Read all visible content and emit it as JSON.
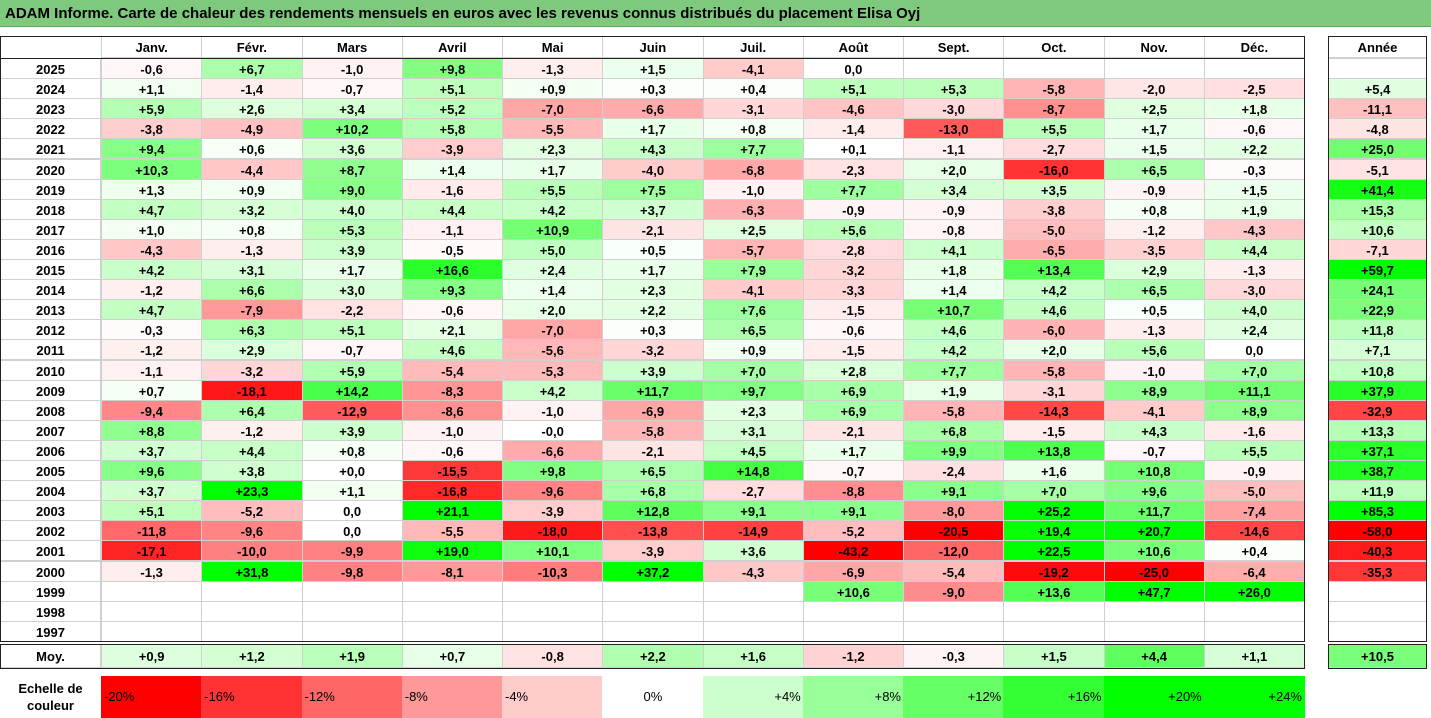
{
  "title": "ADAM Informe. Carte de chaleur des rendements mensuels en euros avec les revenus connus distribués du placement Elisa Oyj",
  "chart_data": {
    "type": "heatmap",
    "months": [
      "Janv.",
      "Févr.",
      "Mars",
      "Avril",
      "Mai",
      "Juin",
      "Juil.",
      "Août",
      "Sept.",
      "Oct.",
      "Nov.",
      "Déc."
    ],
    "annual_header": "Année",
    "average_label": "Moy.",
    "years": [
      "2025",
      "2024",
      "2023",
      "2022",
      "2021",
      "2020",
      "2019",
      "2018",
      "2017",
      "2016",
      "2015",
      "2014",
      "2013",
      "2012",
      "2011",
      "2010",
      "2009",
      "2008",
      "2007",
      "2006",
      "2005",
      "2004",
      "2003",
      "2002",
      "2001",
      "2000",
      "1999",
      "1998",
      "1997"
    ],
    "values": [
      [
        "-0,6",
        "+6,7",
        "-1,0",
        "+9,8",
        "-1,3",
        "+1,5",
        "-4,1",
        "0,0",
        "",
        "",
        "",
        ""
      ],
      [
        "+1,1",
        "-1,4",
        "-0,7",
        "+5,1",
        "+0,9",
        "+0,3",
        "+0,4",
        "+5,1",
        "+5,3",
        "-5,8",
        "-2,0",
        "-2,5"
      ],
      [
        "+5,9",
        "+2,6",
        "+3,4",
        "+5,2",
        "-7,0",
        "-6,6",
        "-3,1",
        "-4,6",
        "-3,0",
        "-8,7",
        "+2,5",
        "+1,8"
      ],
      [
        "-3,8",
        "-4,9",
        "+10,2",
        "+5,8",
        "-5,5",
        "+1,7",
        "+0,8",
        "-1,4",
        "-13,0",
        "+5,5",
        "+1,7",
        "-0,6"
      ],
      [
        "+9,4",
        "+0,6",
        "+3,6",
        "-3,9",
        "+2,3",
        "+4,3",
        "+7,7",
        "+0,1",
        "-1,1",
        "-2,7",
        "+1,5",
        "+2,2"
      ],
      [
        "+10,3",
        "-4,4",
        "+8,7",
        "+1,4",
        "+1,7",
        "-4,0",
        "-6,8",
        "-2,3",
        "+2,0",
        "-16,0",
        "+6,5",
        "-0,3"
      ],
      [
        "+1,3",
        "+0,9",
        "+9,0",
        "-1,6",
        "+5,5",
        "+7,5",
        "-1,0",
        "+7,7",
        "+3,4",
        "+3,5",
        "-0,9",
        "+1,5"
      ],
      [
        "+4,7",
        "+3,2",
        "+4,0",
        "+4,4",
        "+4,2",
        "+3,7",
        "-6,3",
        "-0,9",
        "-0,9",
        "-3,8",
        "+0,8",
        "+1,9"
      ],
      [
        "+1,0",
        "+0,8",
        "+5,3",
        "-1,1",
        "+10,9",
        "-2,1",
        "+2,5",
        "+5,6",
        "-0,8",
        "-5,0",
        "-1,2",
        "-4,3"
      ],
      [
        "-4,3",
        "-1,3",
        "+3,9",
        "-0,5",
        "+5,0",
        "+0,5",
        "-5,7",
        "-2,8",
        "+4,1",
        "-6,5",
        "-3,5",
        "+4,4"
      ],
      [
        "+4,2",
        "+3,1",
        "+1,7",
        "+16,6",
        "+2,4",
        "+1,7",
        "+7,9",
        "-3,2",
        "+1,8",
        "+13,4",
        "+2,9",
        "-1,3"
      ],
      [
        "-1,2",
        "+6,6",
        "+3,0",
        "+9,3",
        "+1,4",
        "+2,3",
        "-4,1",
        "-3,3",
        "+1,4",
        "+4,2",
        "+6,5",
        "-3,0"
      ],
      [
        "+4,7",
        "-7,9",
        "-2,2",
        "-0,6",
        "+2,0",
        "+2,2",
        "+7,6",
        "-1,5",
        "+10,7",
        "+4,6",
        "+0,5",
        "+4,0"
      ],
      [
        "-0,3",
        "+6,3",
        "+5,1",
        "+2,1",
        "-7,0",
        "+0,3",
        "+6,5",
        "-0,6",
        "+4,6",
        "-6,0",
        "-1,3",
        "+2,4"
      ],
      [
        "-1,2",
        "+2,9",
        "-0,7",
        "+4,6",
        "-5,6",
        "-3,2",
        "+0,9",
        "-1,5",
        "+4,2",
        "+2,0",
        "+5,6",
        "0,0"
      ],
      [
        "-1,1",
        "-3,2",
        "+5,9",
        "-5,4",
        "-5,3",
        "+3,9",
        "+7,0",
        "+2,8",
        "+7,7",
        "-5,8",
        "-1,0",
        "+7,0"
      ],
      [
        "+0,7",
        "-18,1",
        "+14,2",
        "-8,3",
        "+4,2",
        "+11,7",
        "+9,7",
        "+6,9",
        "+1,9",
        "-3,1",
        "+8,9",
        "+11,1"
      ],
      [
        "-9,4",
        "+6,4",
        "-12,9",
        "-8,6",
        "-1,0",
        "-6,9",
        "+2,3",
        "+6,9",
        "-5,8",
        "-14,3",
        "-4,1",
        "+8,9"
      ],
      [
        "+8,8",
        "-1,2",
        "+3,9",
        "-1,0",
        "-0,0",
        "-5,8",
        "+3,1",
        "-2,1",
        "+6,8",
        "-1,5",
        "+4,3",
        "-1,6"
      ],
      [
        "+3,7",
        "+4,4",
        "+0,8",
        "-0,6",
        "-6,6",
        "-2,1",
        "+4,5",
        "+1,7",
        "+9,9",
        "+13,8",
        "-0,7",
        "+5,5"
      ],
      [
        "+9,6",
        "+3,8",
        "+0,0",
        "-15,5",
        "+9,8",
        "+6,5",
        "+14,8",
        "-0,7",
        "-2,4",
        "+1,6",
        "+10,8",
        "-0,9"
      ],
      [
        "+3,7",
        "+23,3",
        "+1,1",
        "-16,8",
        "-9,6",
        "+6,8",
        "-2,7",
        "-8,8",
        "+9,1",
        "+7,0",
        "+9,6",
        "-5,0"
      ],
      [
        "+5,1",
        "-5,2",
        "0,0",
        "+21,1",
        "-3,9",
        "+12,8",
        "+9,1",
        "+9,1",
        "-8,0",
        "+25,2",
        "+11,7",
        "-7,4"
      ],
      [
        "-11,8",
        "-9,6",
        "0,0",
        "-5,5",
        "-18,0",
        "-13,8",
        "-14,9",
        "-5,2",
        "-20,5",
        "+19,4",
        "+20,7",
        "-14,6"
      ],
      [
        "-17,1",
        "-10,0",
        "-9,9",
        "+19,0",
        "+10,1",
        "-3,9",
        "+3,6",
        "-43,2",
        "-12,0",
        "+22,5",
        "+10,6",
        "+0,4"
      ],
      [
        "-1,3",
        "+31,8",
        "-9,8",
        "-8,1",
        "-10,3",
        "+37,2",
        "-4,3",
        "-6,9",
        "-5,4",
        "-19,2",
        "-25,0",
        "-6,4"
      ],
      [
        "",
        "",
        "",
        "",
        "",
        "",
        "",
        "+10,6",
        "-9,0",
        "+13,6",
        "+47,7",
        "+26,0"
      ],
      [
        "",
        "",
        "",
        "",
        "",
        "",
        "",
        "",
        "",
        "",
        "",
        ""
      ],
      [
        "",
        "",
        "",
        "",
        "",
        "",
        "",
        "",
        "",
        "",
        "",
        ""
      ]
    ],
    "annual": [
      "",
      "+5,4",
      "-11,1",
      "-4,8",
      "+25,0",
      "-5,1",
      "+41,4",
      "+15,3",
      "+10,6",
      "-7,1",
      "+59,7",
      "+24,1",
      "+22,9",
      "+11,8",
      "+7,1",
      "+10,8",
      "+37,9",
      "-32,9",
      "+13,3",
      "+37,1",
      "+38,7",
      "+11,9",
      "+85,3",
      "-58,0",
      "-40,3",
      "-35,3",
      "",
      "",
      ""
    ],
    "averages": [
      "+0,9",
      "+1,2",
      "+1,9",
      "+0,7",
      "-0,8",
      "+2,2",
      "+1,6",
      "-1,2",
      "-0,3",
      "+1,5",
      "+4,4",
      "+1,1"
    ],
    "average_annual": "+10,5",
    "scale_label": "Echelle de couleur",
    "scale": [
      "-20%",
      "-16%",
      "-12%",
      "-8%",
      "-4%",
      "0%",
      "+4%",
      "+8%",
      "+12%",
      "+16%",
      "+20%",
      "+24%"
    ],
    "colors": {
      "negative_max": "#ff0000",
      "neutral": "#ffffff",
      "positive_max": "#00ff00",
      "title_bar": "#7fc97f"
    }
  }
}
